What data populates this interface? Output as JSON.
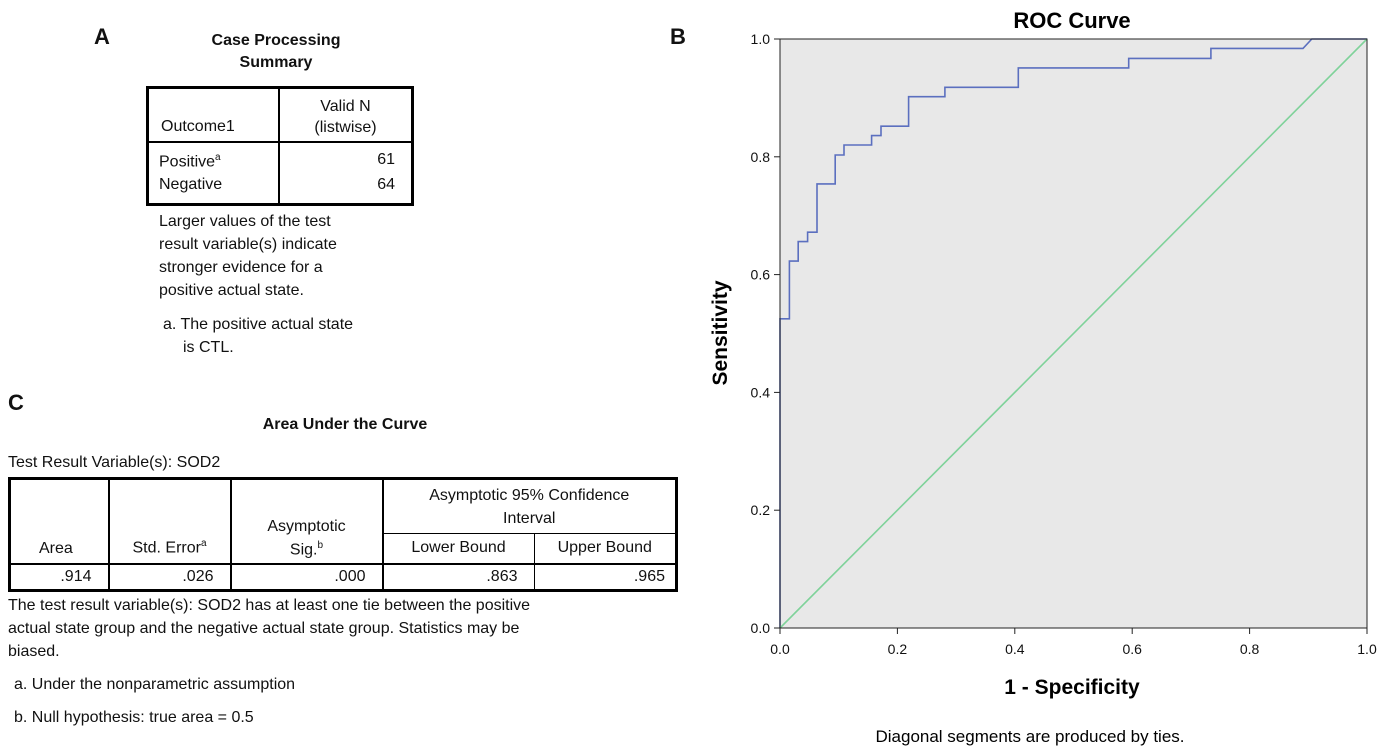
{
  "panels": {
    "a": "A",
    "b": "B",
    "c": "C"
  },
  "case_summary": {
    "title_line1": "Case Processing",
    "title_line2": "Summary",
    "header_outcome": "Outcome1",
    "header_valid_line1": "Valid N",
    "header_valid_line2": "(listwise)",
    "rows": [
      {
        "label": "Positive",
        "sup": "a",
        "value": "61"
      },
      {
        "label": "Negative",
        "sup": "",
        "value": "64"
      }
    ],
    "note_lines": [
      "Larger values of the test",
      "result variable(s) indicate",
      "stronger evidence for a",
      "positive actual state."
    ],
    "footnote_line1": "a. The positive actual state",
    "footnote_line2": "is CTL."
  },
  "auc": {
    "title": "Area Under the Curve",
    "variable_label": "Test Result Variable(s):  SOD2",
    "headers": {
      "area": "Area",
      "std_error": "Std. Error",
      "std_error_sup": "a",
      "asym_sig_line1": "Asymptotic",
      "asym_sig_line2": "Sig.",
      "asym_sig_sup": "b",
      "ci_line1": "Asymptotic 95% Confidence",
      "ci_line2": "Interval",
      "lower": "Lower Bound",
      "upper": "Upper Bound"
    },
    "values": {
      "area": ".914",
      "std_error": ".026",
      "sig": ".000",
      "lower": ".863",
      "upper": ".965"
    },
    "note_lines": [
      "The test result variable(s): SOD2 has at least one tie between the positive",
      "actual state group and the negative actual state group. Statistics may be",
      "biased."
    ],
    "footnote_a": "a. Under the nonparametric assumption",
    "footnote_b": "b. Null hypothesis: true area = 0.5"
  },
  "chart_data": {
    "type": "line",
    "title": "ROC Curve",
    "xlabel": "1 - Specificity",
    "ylabel": "Sensitivity",
    "footnote": "Diagonal segments are produced by ties.",
    "xlim": [
      0,
      1
    ],
    "ylim": [
      0,
      1
    ],
    "xticks": [
      "0.0",
      "0.2",
      "0.4",
      "0.6",
      "0.8",
      "1.0"
    ],
    "yticks": [
      "0.0",
      "0.2",
      "0.4",
      "0.6",
      "0.8",
      "1.0"
    ],
    "series": [
      {
        "name": "SOD2",
        "color": "#5b6fbf",
        "x": [
          0,
          0,
          0.016,
          0.016,
          0.031,
          0.031,
          0.047,
          0.047,
          0.063,
          0.063,
          0.094,
          0.094,
          0.109,
          0.109,
          0.156,
          0.156,
          0.172,
          0.172,
          0.219,
          0.219,
          0.281,
          0.281,
          0.406,
          0.406,
          0.594,
          0.594,
          0.734,
          0.734,
          0.891,
          0.906,
          1.0
        ],
        "y": [
          0,
          0.525,
          0.525,
          0.623,
          0.623,
          0.656,
          0.656,
          0.672,
          0.672,
          0.754,
          0.754,
          0.803,
          0.803,
          0.82,
          0.82,
          0.836,
          0.836,
          0.852,
          0.852,
          0.902,
          0.902,
          0.918,
          0.918,
          0.951,
          0.951,
          0.967,
          0.967,
          0.984,
          0.984,
          1.0,
          1.0
        ]
      },
      {
        "name": "Reference Line",
        "color": "#7fd29a",
        "x": [
          0,
          1
        ],
        "y": [
          0,
          1
        ]
      }
    ],
    "colors": {
      "plot_bg": "#e8e8e8",
      "axis": "#222222"
    }
  }
}
